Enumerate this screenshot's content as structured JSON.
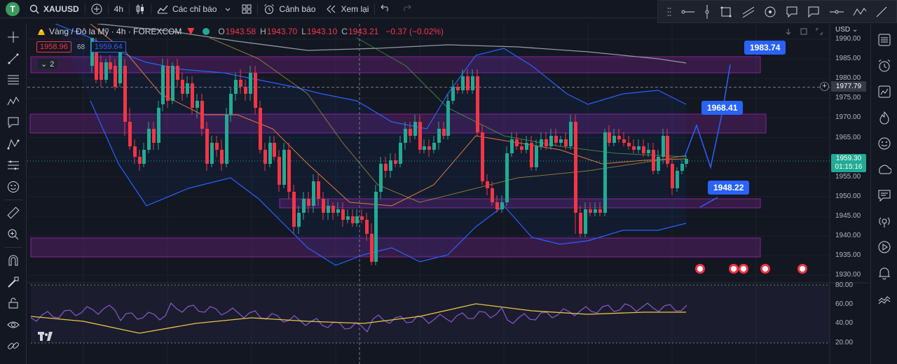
{
  "toolbar": {
    "avatar_letter": "T",
    "symbol": "XAUUSD",
    "interval": "4h",
    "indicators_label": "Các chỉ báo",
    "alert_label": "Cảnh báo",
    "replay_label": "Xem lại"
  },
  "legend": {
    "title": "Vàng / Đô la Mỹ · 4h · FOREXCOM",
    "o_label": "O",
    "o_value": "1943.58",
    "h_label": "H",
    "h_value": "1943.70",
    "l_label": "L",
    "l_value": "1943.10",
    "c_label": "C",
    "c_value": "1943.21",
    "change": "−0.37 (−0.02%)",
    "sell_price": "1958.96",
    "spread": "68",
    "buy_price": "1959.64",
    "collapsed_count": "2"
  },
  "price_axis": {
    "currency": "USD",
    "labels": [
      "1990.00",
      "1985.00",
      "1980.00",
      "1975.00",
      "1970.00",
      "1965.00",
      "1960.00",
      "1955.00",
      "1950.00",
      "1945.00",
      "1940.00",
      "1935.00",
      "1930.00"
    ],
    "crosshair_price": "1977.79",
    "current_price": "1959.30",
    "countdown": "01:15:16"
  },
  "rsi_axis": {
    "labels": [
      "80.00",
      "60.00",
      "40.00",
      "20.00"
    ]
  },
  "annotations": {
    "target_high": "1983.74",
    "target_mid": "1968.41",
    "target_low": "1948.22"
  },
  "colors": {
    "up": "#22ab94",
    "down": "#f23645",
    "accent": "#2962ff",
    "band": "#9c27b0",
    "background": "#131722"
  },
  "icons": {
    "left_toolbar": [
      "crosshair-icon",
      "trend-line-icon",
      "fib-icon",
      "pattern-icon",
      "text-icon",
      "projection-icon",
      "measure-icon",
      "emoji-icon",
      "ruler-icon",
      "zoom-icon",
      "magnet-icon",
      "lock-drawing-icon",
      "lock-icon",
      "eye-icon",
      "link-icon"
    ],
    "right_toolbar": [
      "watchlist-icon",
      "alarm-icon",
      "data-window-icon",
      "hotlist-icon",
      "calendar-icon",
      "ideas-icon",
      "chat-icon",
      "streams-icon",
      "replay-icon",
      "notifications-icon",
      "help-icon"
    ]
  }
}
